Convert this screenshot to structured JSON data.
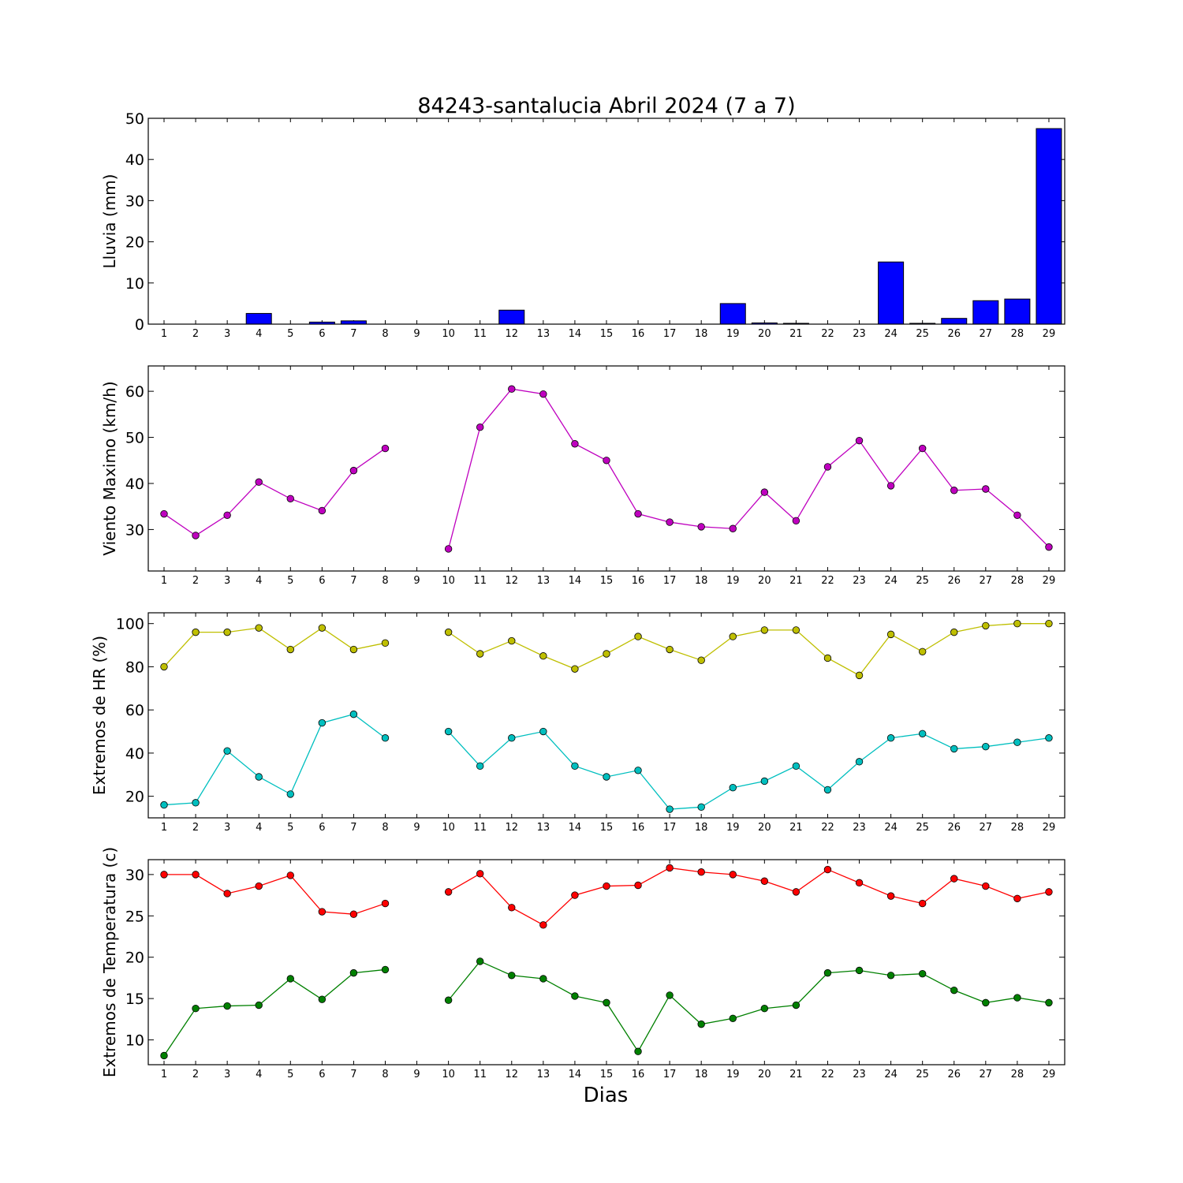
{
  "title": "84243-santalucia Abril 2024  (7 a 7)",
  "xlabel": "Dias",
  "chart_data": [
    {
      "type": "bar",
      "ylabel": "Lluvia (mm)",
      "ylim": [
        0,
        50
      ],
      "yticks": [
        0,
        10,
        20,
        30,
        40,
        50
      ],
      "x": [
        1,
        2,
        3,
        4,
        5,
        6,
        7,
        8,
        9,
        10,
        11,
        12,
        13,
        14,
        15,
        16,
        17,
        18,
        19,
        20,
        21,
        22,
        23,
        24,
        25,
        26,
        27,
        28,
        29
      ],
      "series": [
        {
          "color": "#0000ff",
          "values": [
            0,
            0,
            0,
            2.6,
            0,
            0.5,
            0.8,
            0,
            0,
            0,
            0,
            3.4,
            0,
            0,
            0,
            0,
            0,
            0,
            5.0,
            0.3,
            0.2,
            0,
            0,
            15.1,
            0.2,
            1.4,
            5.7,
            6.1,
            47.5
          ]
        }
      ]
    },
    {
      "type": "line",
      "ylabel": "Viento Maximo (km/h)",
      "ylim": [
        21,
        65.5
      ],
      "yticks": [
        30,
        40,
        50,
        60
      ],
      "x": [
        1,
        2,
        3,
        4,
        5,
        6,
        7,
        8,
        9,
        10,
        11,
        12,
        13,
        14,
        15,
        16,
        17,
        18,
        19,
        20,
        21,
        22,
        23,
        24,
        25,
        26,
        27,
        28,
        29
      ],
      "series": [
        {
          "color": "#bf00bf",
          "values": [
            33.4,
            28.7,
            33.1,
            40.3,
            36.7,
            34.1,
            42.8,
            47.6,
            null,
            25.8,
            52.2,
            60.5,
            59.4,
            48.6,
            45.0,
            33.4,
            31.6,
            30.6,
            30.2,
            38.1,
            31.9,
            43.6,
            49.3,
            39.5,
            47.6,
            38.5,
            38.8,
            33.1,
            26.2
          ]
        }
      ]
    },
    {
      "type": "line",
      "ylabel": "Extremos de HR (%)",
      "ylim": [
        10,
        105
      ],
      "yticks": [
        20,
        40,
        60,
        80,
        100
      ],
      "x": [
        1,
        2,
        3,
        4,
        5,
        6,
        7,
        8,
        9,
        10,
        11,
        12,
        13,
        14,
        15,
        16,
        17,
        18,
        19,
        20,
        21,
        22,
        23,
        24,
        25,
        26,
        27,
        28,
        29
      ],
      "series": [
        {
          "color": "#bfbf00",
          "values": [
            80,
            96,
            96,
            98,
            88,
            98,
            88,
            91,
            null,
            96,
            86,
            92,
            85,
            79,
            86,
            94,
            88,
            83,
            94,
            97,
            97,
            84,
            76,
            95,
            87,
            96,
            99,
            100,
            100
          ]
        },
        {
          "color": "#00bfbf",
          "values": [
            16,
            17,
            41,
            29,
            21,
            54,
            58,
            47,
            null,
            50,
            34,
            47,
            50,
            34,
            29,
            32,
            14,
            15,
            24,
            27,
            34,
            23,
            36,
            47,
            49,
            42,
            43,
            45,
            47
          ]
        }
      ]
    },
    {
      "type": "line",
      "ylabel": "Extremos de Temperatura (c)",
      "ylim": [
        7,
        31.8
      ],
      "yticks": [
        10,
        15,
        20,
        25,
        30
      ],
      "x": [
        1,
        2,
        3,
        4,
        5,
        6,
        7,
        8,
        9,
        10,
        11,
        12,
        13,
        14,
        15,
        16,
        17,
        18,
        19,
        20,
        21,
        22,
        23,
        24,
        25,
        26,
        27,
        28,
        29
      ],
      "series": [
        {
          "color": "#ff0000",
          "values": [
            30.0,
            30.0,
            27.7,
            28.6,
            29.9,
            25.5,
            25.2,
            26.5,
            null,
            27.9,
            30.1,
            26.0,
            23.9,
            27.5,
            28.6,
            28.7,
            30.8,
            30.3,
            30.0,
            29.2,
            27.9,
            30.6,
            29.0,
            27.4,
            26.5,
            29.5,
            28.6,
            27.1,
            27.9
          ]
        },
        {
          "color": "#008000",
          "values": [
            8.1,
            13.8,
            14.1,
            14.2,
            17.4,
            14.9,
            18.1,
            18.5,
            null,
            14.8,
            19.5,
            17.8,
            17.4,
            15.3,
            14.5,
            8.6,
            15.4,
            11.9,
            12.6,
            13.8,
            14.2,
            18.1,
            18.4,
            17.8,
            18.0,
            16.0,
            14.5,
            15.1,
            14.5
          ]
        }
      ]
    }
  ]
}
